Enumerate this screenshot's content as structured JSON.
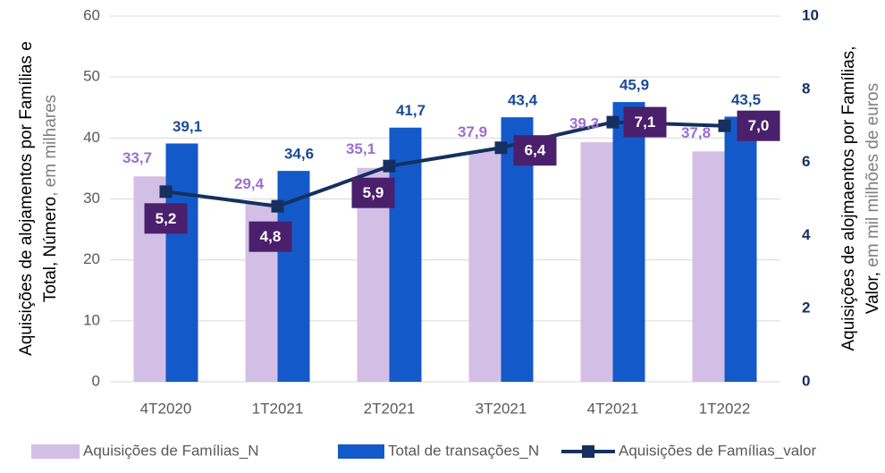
{
  "chart_data": {
    "type": "bar_line",
    "ylabel": {
      "line1": "Aquisições de alojamentos por Famílias e",
      "line2": "Total, Número",
      "unit": ", em milhares"
    },
    "y2label": {
      "line1": "Aquisições de alojmaentos por Famílias,",
      "line2": "Valor,",
      "unit": " em mil milhões de euros"
    },
    "categories": [
      "4T2020",
      "1T2021",
      "2T2021",
      "3T2021",
      "4T2021",
      "1T2022"
    ],
    "series": [
      {
        "name": "Aquisições de Famílias_N",
        "color": "#d3bfe6",
        "label_color": "#9b6fd0",
        "values": [
          33.7,
          29.4,
          35.1,
          37.9,
          39.3,
          37.8
        ],
        "value_labels": [
          "33,7",
          "29,4",
          "35,1",
          "37,9",
          "39,3",
          "37,8"
        ]
      },
      {
        "name": "Total de transações_N",
        "color": "#1459c9",
        "label_color": "#1a4a96",
        "values": [
          39.1,
          34.6,
          41.7,
          43.4,
          45.9,
          43.5
        ],
        "value_labels": [
          "39,1",
          "34,6",
          "41,7",
          "43,4",
          "45,9",
          "43,5"
        ]
      },
      {
        "name": "Aquisições de Famílias_valor",
        "color": "#15305f",
        "label_color": "#4a1f6b",
        "axis": "y2",
        "values": [
          5.2,
          4.8,
          5.9,
          6.4,
          7.1,
          7.0
        ],
        "value_labels": [
          "5,2",
          "4,8",
          "5,9",
          "6,4",
          "7,1",
          "7,0"
        ]
      }
    ],
    "ylim": [
      0,
      60
    ],
    "yticks": [
      0,
      10,
      20,
      30,
      40,
      50,
      60
    ],
    "y2lim": [
      0,
      10
    ],
    "y2ticks": [
      0,
      2,
      4,
      6,
      8,
      10
    ],
    "grid": true
  }
}
